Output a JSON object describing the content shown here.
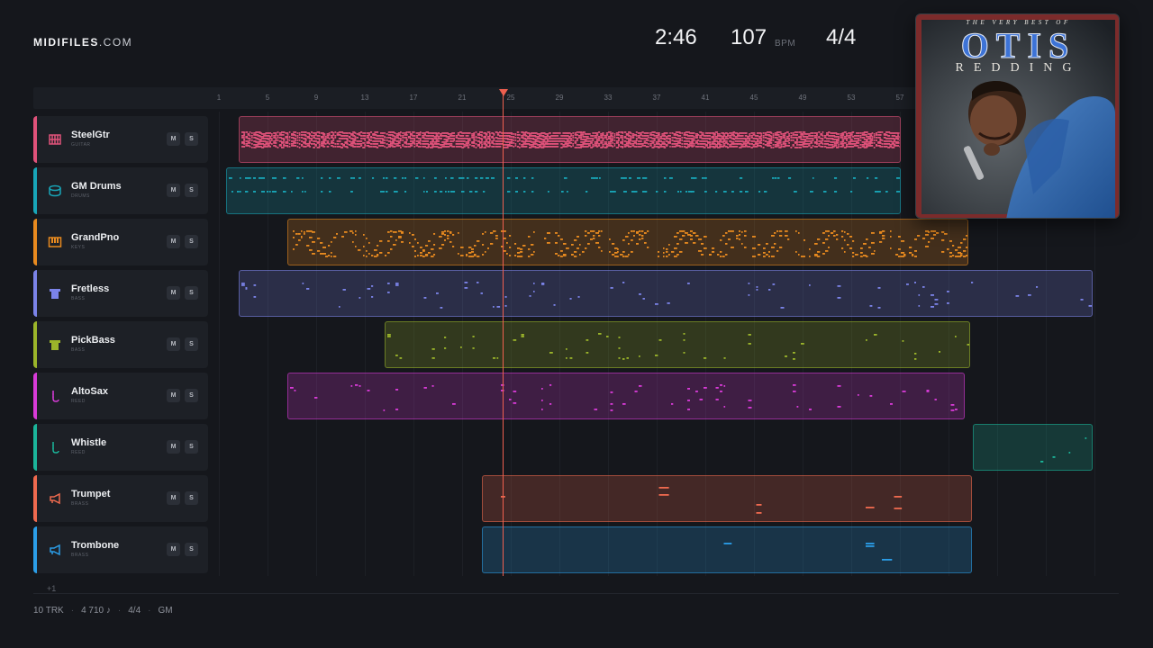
{
  "brand": {
    "bold": "MIDIFILES",
    "light": ".COM"
  },
  "transport": {
    "time": "2:46",
    "bpm": "107",
    "bpm_unit": "BPM",
    "time_signature": "4/4"
  },
  "ruler": {
    "marks": [
      "1",
      "5",
      "9",
      "13",
      "17",
      "21",
      "25",
      "29",
      "33",
      "37",
      "41",
      "45",
      "49",
      "53",
      "57"
    ]
  },
  "playhead": {
    "bar": 24.2
  },
  "tracks": [
    {
      "name": "SteelGtr",
      "category": "GUITAR",
      "icon": "guitar-icon",
      "color": "#e0527a",
      "mute_label": "M",
      "solo_label": "S"
    },
    {
      "name": "GM Drums",
      "category": "DRUMS",
      "icon": "drum-icon",
      "color": "#18a6b8",
      "mute_label": "M",
      "solo_label": "S"
    },
    {
      "name": "GrandPno",
      "category": "KEYS",
      "icon": "piano-icon",
      "color": "#e88a1f",
      "mute_label": "M",
      "solo_label": "S"
    },
    {
      "name": "Fretless",
      "category": "BASS",
      "icon": "bass-icon",
      "color": "#7b83e8",
      "mute_label": "M",
      "solo_label": "S"
    },
    {
      "name": "PickBass",
      "category": "BASS",
      "icon": "bass-icon",
      "color": "#9bb52a",
      "mute_label": "M",
      "solo_label": "S"
    },
    {
      "name": "AltoSax",
      "category": "REED",
      "icon": "sax-icon",
      "color": "#d83bd8",
      "mute_label": "M",
      "solo_label": "S"
    },
    {
      "name": "Whistle",
      "category": "REED",
      "icon": "sax-icon",
      "color": "#1bb59a",
      "mute_label": "M",
      "solo_label": "S"
    },
    {
      "name": "Trumpet",
      "category": "BRASS",
      "icon": "horn-icon",
      "color": "#ef6a4f",
      "mute_label": "M",
      "solo_label": "S"
    },
    {
      "name": "Trombone",
      "category": "BRASS",
      "icon": "horn-icon",
      "color": "#2b9ee8",
      "mute_label": "M",
      "solo_label": "S"
    }
  ],
  "more_tracks": "+1",
  "footer": {
    "tracks": "10 TRK",
    "notes": "4 710 ♪",
    "time_signature": "4/4",
    "standard": "GM"
  },
  "album": {
    "top_line": "THE VERY BEST OF",
    "artist_first": "OTIS",
    "artist_last": "REDDING"
  }
}
